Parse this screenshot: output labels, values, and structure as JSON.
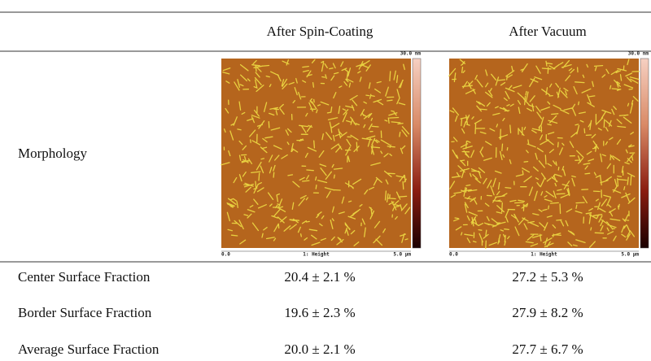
{
  "table": {
    "columns": [
      "After Spin-Coating",
      "After Vacuum"
    ],
    "morphology": {
      "label": "Morphology",
      "images": [
        {
          "scale_max": "30.0 nm",
          "x_min": "0.0",
          "channel": "1: Height",
          "x_max": "5.0 µm"
        },
        {
          "scale_max": "30.0 nm",
          "x_min": "0.0",
          "channel": "1: Height",
          "x_max": "5.0 µm"
        }
      ]
    },
    "rows": [
      [
        "Center Surface Fraction",
        "20.4 ± 2.1 %",
        "27.2 ± 5.3 %"
      ],
      [
        "Border Surface Fraction",
        "19.6 ± 2.3 %",
        "27.9 ± 8.2 %"
      ],
      [
        "Average Surface Fraction",
        "20.0 ± 2.1 %",
        "27.7 ± 6.7 %"
      ]
    ]
  }
}
